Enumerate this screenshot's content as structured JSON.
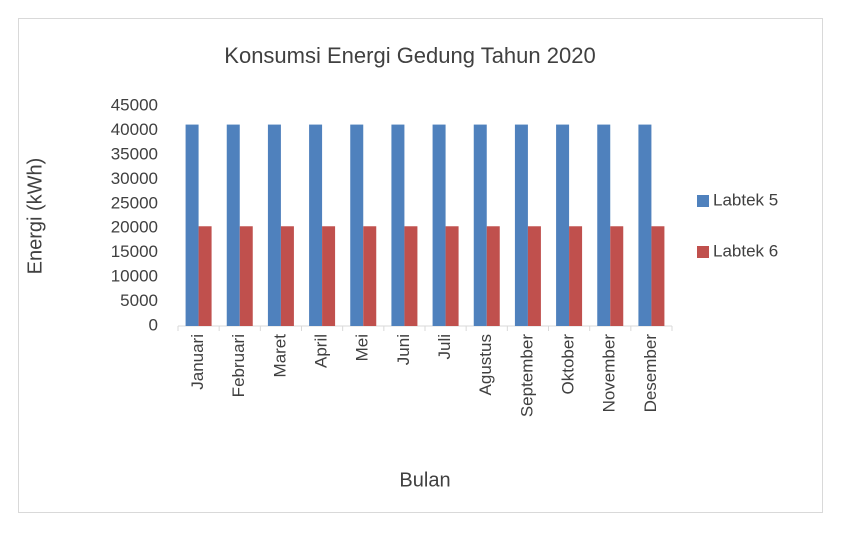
{
  "chart_data": {
    "type": "bar",
    "title": "Konsumsi Energi Gedung Tahun 2020",
    "x_label": "Bulan",
    "y_label": "Energi (kWh)",
    "categories": [
      "Januari",
      "Februari",
      "Maret",
      "April",
      "Mei",
      "Juni",
      "Juli",
      "Agustus",
      "September",
      "Oktober",
      "November",
      "Desember"
    ],
    "series": [
      {
        "name": "Labtek 5",
        "color": "#4f81bd",
        "values": [
          41200,
          41200,
          41200,
          41200,
          41200,
          41200,
          41200,
          41200,
          41200,
          41200,
          41200,
          41200
        ]
      },
      {
        "name": "Labtek 6",
        "color": "#c0504d",
        "values": [
          20400,
          20400,
          20400,
          20400,
          20400,
          20400,
          20400,
          20400,
          20400,
          20400,
          20400,
          20400
        ]
      }
    ],
    "ylim": [
      0,
      45000
    ],
    "yticks": [
      0,
      5000,
      10000,
      15000,
      20000,
      25000,
      30000,
      35000,
      40000,
      45000
    ],
    "grid": false,
    "legend": "right"
  }
}
